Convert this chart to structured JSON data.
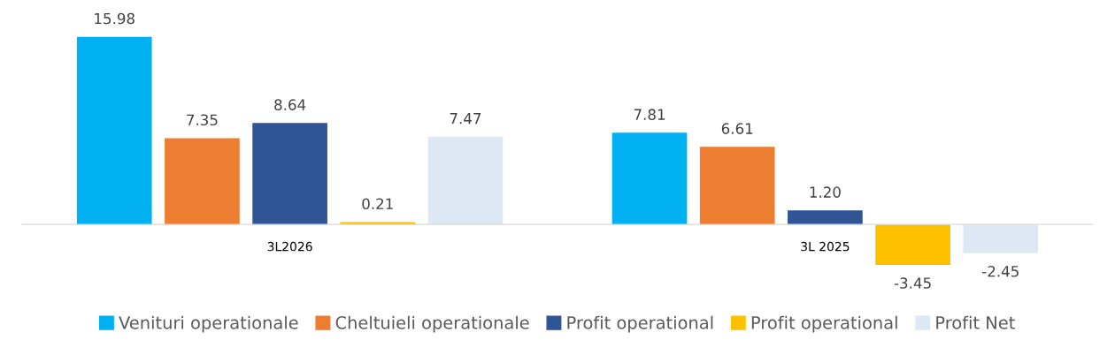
{
  "chart_data": {
    "type": "bar",
    "categories": [
      "3L2026",
      "3L 2025"
    ],
    "legend": "bottom",
    "grid": false,
    "series": [
      {
        "name": "Venituri operationale",
        "color": "#00b0f0",
        "values": [
          15.98,
          7.81
        ],
        "value_labels": [
          "15.98",
          "7.81"
        ]
      },
      {
        "name": "Cheltuieli operationale",
        "color": "#ed7d31",
        "values": [
          7.35,
          6.61
        ],
        "value_labels": [
          "7.35",
          "6.61"
        ]
      },
      {
        "name": "Profit operational",
        "color": "#2f5597",
        "values": [
          8.64,
          1.2
        ],
        "value_labels": [
          "8.64",
          "1.20"
        ]
      },
      {
        "name": "Profit operational",
        "color": "#ffc000",
        "values": [
          0.21,
          -3.45
        ],
        "value_labels": [
          "0.21",
          "-3.45"
        ]
      },
      {
        "name": "Profit Net",
        "color": "#dee8f4",
        "values": [
          7.47,
          -2.45
        ],
        "value_labels": [
          "7.47",
          "-2.45"
        ]
      }
    ]
  }
}
